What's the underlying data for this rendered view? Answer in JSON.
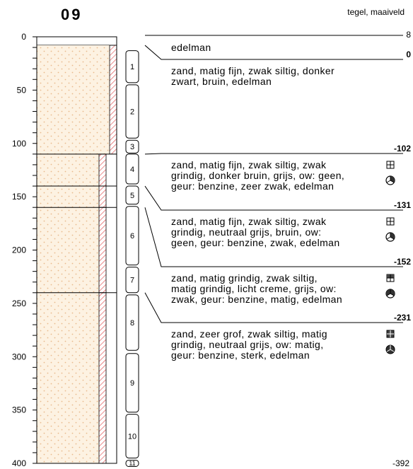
{
  "title": "09",
  "surface_label": "tegel, maaiveld",
  "axis": {
    "min": 0,
    "max": 400,
    "labels": [
      "0",
      "50",
      "100",
      "150",
      "200",
      "250",
      "300",
      "350",
      "400"
    ]
  },
  "layers": [
    {
      "top": 8,
      "bottom": 110,
      "wide_hatch": false
    },
    {
      "top": 110,
      "bottom": 140,
      "wide_hatch": true
    },
    {
      "top": 140,
      "bottom": 160,
      "wide_hatch": true
    },
    {
      "top": 160,
      "bottom": 240,
      "wide_hatch": true
    },
    {
      "top": 240,
      "bottom": 400,
      "wide_hatch": true
    }
  ],
  "samples": [
    {
      "label": "1",
      "top": 13,
      "bottom": 43
    },
    {
      "label": "2",
      "top": 45,
      "bottom": 95
    },
    {
      "label": "3",
      "top": 97,
      "bottom": 109
    },
    {
      "label": "4",
      "top": 110,
      "bottom": 138
    },
    {
      "label": "5",
      "top": 140,
      "bottom": 157
    },
    {
      "label": "6",
      "top": 159,
      "bottom": 214
    },
    {
      "label": "7",
      "top": 216,
      "bottom": 240
    },
    {
      "label": "8",
      "top": 242,
      "bottom": 294
    },
    {
      "label": "9",
      "top": 297,
      "bottom": 352
    },
    {
      "label": "10",
      "top": 354,
      "bottom": 395
    },
    {
      "label": "11",
      "top": 397,
      "bottom": 400
    }
  ],
  "descriptions": [
    {
      "marker": "8",
      "lines": [
        "edelman"
      ],
      "symbols": []
    },
    {
      "marker": "0",
      "lines": [
        "zand, matig fijn, zwak siltig, donker",
        "zwart, bruin, edelman"
      ],
      "symbols": []
    },
    {
      "marker": "-102",
      "lines": [
        "zand, matig fijn, zwak siltig, zwak",
        "grindig, donker bruin, grijs, ow: geen,",
        "geur: benzine, zeer zwak, edelman"
      ],
      "symbols": [
        "grid-square-icon",
        "smell-weak-icon"
      ]
    },
    {
      "marker": "-131",
      "lines": [
        "zand, matig fijn, zwak siltig, zwak",
        "grindig, neutraal grijs, bruin, ow:",
        "geen, geur: benzine, zwak, edelman"
      ],
      "symbols": [
        "grid-square-icon",
        "smell-weak-icon"
      ]
    },
    {
      "marker": "-152",
      "lines": [
        "zand, matig grindig, zwak siltig,",
        "matig grindig, licht creme, grijs, ow:",
        "zwak, geur: benzine, matig, edelman"
      ],
      "symbols": [
        "grid-square-partial-icon",
        "smell-moderate-icon"
      ]
    },
    {
      "marker": "-231",
      "lines": [
        "zand, zeer grof, zwak siltig, matig",
        "grindig, neutraal grijs, ow: matig,",
        "geur: benzine, sterk, edelman"
      ],
      "symbols": [
        "grid-square-filled-icon",
        "smell-strong-icon"
      ]
    }
  ],
  "bottom_marker": "-392",
  "colors": {
    "sand_fill": "#fdf2e2",
    "sand_dot": "#e9b98c",
    "hatch": "#e05050",
    "line": "#000000"
  }
}
